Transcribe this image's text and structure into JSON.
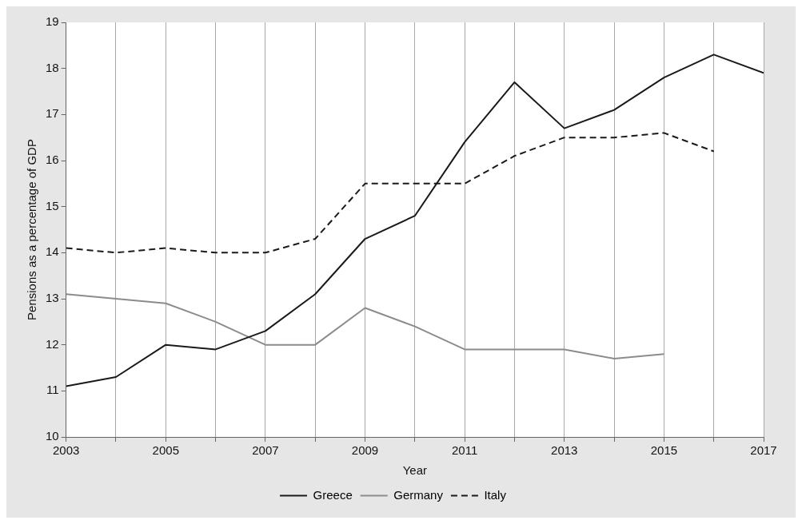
{
  "chart_data": {
    "type": "line",
    "xlabel": "Year",
    "ylabel": "Pensions as a percentage of GDP",
    "x": [
      2003,
      2004,
      2005,
      2006,
      2007,
      2008,
      2009,
      2010,
      2011,
      2012,
      2013,
      2014,
      2015,
      2016,
      2017
    ],
    "series": [
      {
        "name": "Greece",
        "color": "#1a1a1a",
        "line_style": "solid",
        "values": [
          11.1,
          11.3,
          12.0,
          11.9,
          12.3,
          13.1,
          14.3,
          14.8,
          16.4,
          17.7,
          16.7,
          17.1,
          17.8,
          18.3,
          17.9
        ]
      },
      {
        "name": "Germany",
        "color": "#8c8c8c",
        "line_style": "solid",
        "values": [
          13.1,
          13.0,
          12.9,
          12.5,
          12.0,
          12.0,
          12.8,
          12.4,
          11.9,
          11.9,
          11.9,
          11.7,
          11.8,
          null,
          null
        ]
      },
      {
        "name": "Italy",
        "color": "#1a1a1a",
        "line_style": "dashed",
        "values": [
          14.1,
          14.0,
          14.1,
          14.0,
          14.0,
          14.3,
          15.5,
          15.5,
          15.5,
          16.1,
          16.5,
          16.5,
          16.6,
          16.2,
          null
        ]
      }
    ],
    "xlim": [
      2003,
      2017
    ],
    "xticks": [
      2003,
      {
        "value": 2004,
        "label": null
      },
      2005,
      {
        "value": 2006,
        "label": null
      },
      2007,
      {
        "value": 2008,
        "label": null
      },
      2009,
      {
        "value": 2010,
        "label": null
      },
      2011,
      {
        "value": 2012,
        "label": null
      },
      2013,
      {
        "value": 2014,
        "label": null
      },
      2015,
      {
        "value": 2016,
        "label": null
      },
      2017
    ],
    "ylim": [
      10,
      19
    ],
    "yticks": [
      10,
      11,
      12,
      13,
      14,
      15,
      16,
      17,
      18,
      19
    ],
    "grid": "x",
    "legend": "bottom",
    "marker": "none"
  }
}
